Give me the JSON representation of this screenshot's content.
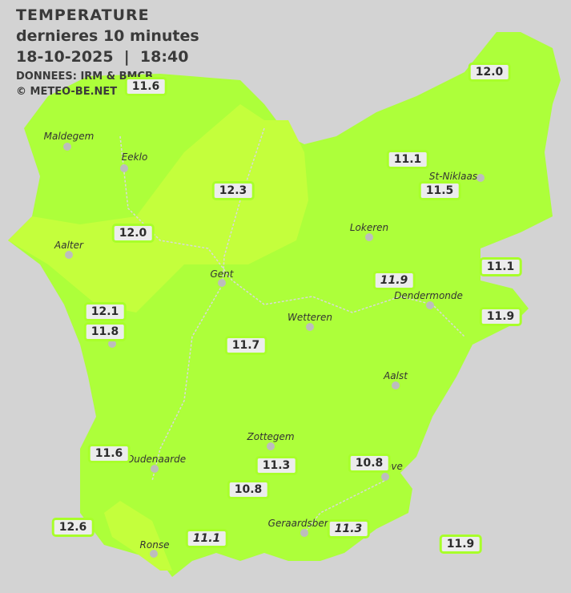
{
  "header": {
    "title": "TEMPERATURE",
    "subtitle": "dernieres 10 minutes",
    "datetime": "18-10-2025  |  18:40",
    "source": "DONNEES: IRM & BMCB",
    "copyright": "© METEO-BE.NET"
  },
  "colors": {
    "background": "#d3d3d3",
    "zone_11": "#adff3a",
    "zone_12": "#c4ff3c",
    "station_border": "#a8ff2a"
  },
  "cities": [
    {
      "name": "Maldegem"
    },
    {
      "name": "Eeklo"
    },
    {
      "name": "Aalter"
    },
    {
      "name": "Gent"
    },
    {
      "name": "Lokeren"
    },
    {
      "name": "St-Niklaas"
    },
    {
      "name": "Dendermonde"
    },
    {
      "name": "Wetteren"
    },
    {
      "name": "Aalst"
    },
    {
      "name": "Zottegem"
    },
    {
      "name": "Oudenaarde"
    },
    {
      "name": "Ronse"
    },
    {
      "name": "Geraardsberg"
    },
    {
      "name": "ove"
    },
    {
      "name": "e"
    }
  ],
  "stations": [
    {
      "value": "11.6",
      "italic": false
    },
    {
      "value": "12.0",
      "italic": false
    },
    {
      "value": "11.1",
      "italic": false
    },
    {
      "value": "12.3",
      "italic": false
    },
    {
      "value": "11.5",
      "italic": false
    },
    {
      "value": "12.0",
      "italic": false
    },
    {
      "value": "11.1",
      "italic": false
    },
    {
      "value": "11.9",
      "italic": true
    },
    {
      "value": "12.1",
      "italic": false
    },
    {
      "value": "11.9",
      "italic": false
    },
    {
      "value": "11.8",
      "italic": false
    },
    {
      "value": "11.7",
      "italic": false
    },
    {
      "value": "11.6",
      "italic": false
    },
    {
      "value": "11.3",
      "italic": false
    },
    {
      "value": "10.8",
      "italic": false
    },
    {
      "value": "10.8",
      "italic": false
    },
    {
      "value": "12.6",
      "italic": false
    },
    {
      "value": "11.1",
      "italic": true
    },
    {
      "value": "11.3",
      "italic": true
    },
    {
      "value": "11.9",
      "italic": false
    }
  ]
}
